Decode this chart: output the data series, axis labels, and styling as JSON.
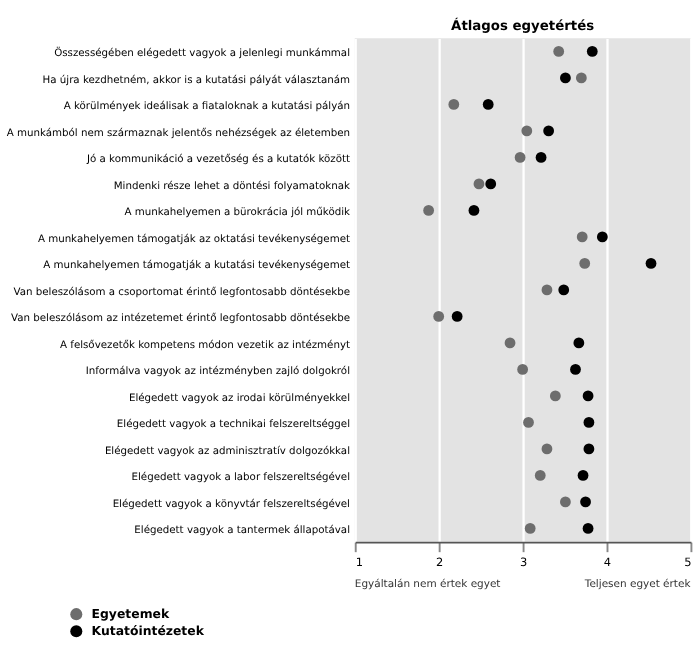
{
  "chart_data": {
    "type": "scatter",
    "title": "Átlagos egyetértés",
    "orientation": "horizontal",
    "categories": [
      "Összességében elégedett vagyok a jelenlegi munkámmal",
      "Ha újra kezdhetném, akkor is a kutatási pályát választanám",
      "A körülmények ideálisak a fiataloknak a kutatási pályán",
      "A munkámból nem származnak jelentős nehézségek az életemben",
      "Jó a kommunikáció a vezetőség és a kutatók között",
      "Mindenki része lehet a döntési folyamatoknak",
      "A munkahelyemen a bürokrácia jól működik",
      "A munkahelyemen támogatják az oktatási tevékenységemet",
      "A munkahelyemen támogatják a kutatási tevékenységemet",
      "Van beleszólásom a csoportomat érintő legfontosabb döntésekbe",
      "Van beleszólásom az intézetemet érintő legfontosabb döntésekbe",
      "A felsővezetők kompetens módon vezetik az intézményt",
      "Informálva vagyok az intézményben zajló dolgokról",
      "Elégedett vagyok az irodai körülményekkel",
      "Elégedett vagyok a technikai felszereltséggel",
      "Elégedett vagyok az adminisztratív dolgozókkal",
      "Elégedett vagyok a labor felszereltségével",
      "Elégedett vagyok a könyvtár felszereltségével",
      "Elégedett vagyok a tantermek állapotával"
    ],
    "series": [
      {
        "name": "Egyetemek",
        "color": "#6d6d6d",
        "values": [
          3.43,
          3.7,
          2.18,
          3.05,
          2.97,
          2.48,
          1.88,
          3.71,
          3.74,
          3.29,
          2.0,
          2.85,
          3.0,
          3.39,
          3.07,
          3.29,
          3.21,
          3.51,
          3.09
        ]
      },
      {
        "name": "Kutatóintézetek",
        "color": "#000000",
        "values": [
          3.83,
          3.51,
          2.59,
          3.31,
          3.22,
          2.62,
          2.42,
          3.95,
          4.53,
          3.49,
          2.22,
          3.67,
          3.63,
          3.78,
          3.79,
          3.79,
          3.72,
          3.75,
          3.78
        ]
      }
    ],
    "xlim": [
      1,
      5
    ],
    "xticks": [
      1,
      2,
      3,
      4,
      5
    ],
    "grid": "x",
    "legend": "bottom left",
    "marker": "circle",
    "annotations": [
      "Egyáltalán nem értek egyet",
      "Teljesen egyet értek"
    ]
  }
}
